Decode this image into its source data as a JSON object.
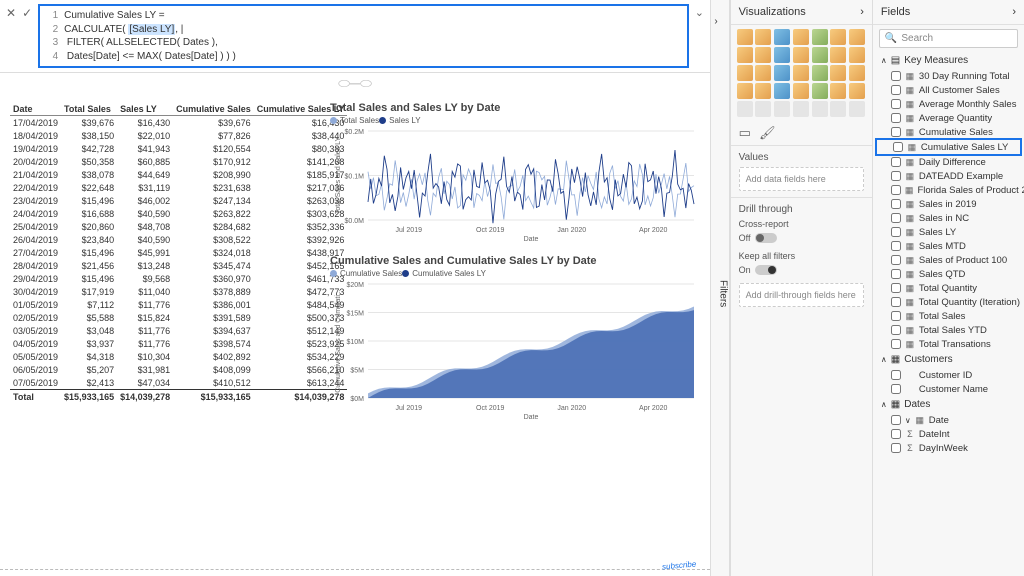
{
  "formula": {
    "lines": [
      {
        "n": "1",
        "pre": "Cumulative Sales LY ="
      },
      {
        "n": "2",
        "pre": "CALCULATE( ",
        "hl": "[Sales LY]",
        "post": ", |"
      },
      {
        "n": "3",
        "pre": "    FILTER( ALLSELECTED( Dates ),"
      },
      {
        "n": "4",
        "pre": "        Dates[Date] <= MAX( Dates[Date] ) ) )"
      }
    ]
  },
  "table": {
    "headers": [
      "Date",
      "Total Sales",
      "Sales LY",
      "Cumulative Sales",
      "Cumulative Sales LY"
    ],
    "rows": [
      [
        "17/04/2019",
        "$39,676",
        "$16,430",
        "$39,676",
        "$16,430"
      ],
      [
        "18/04/2019",
        "$38,150",
        "$22,010",
        "$77,826",
        "$38,440"
      ],
      [
        "19/04/2019",
        "$42,728",
        "$41,943",
        "$120,554",
        "$80,383"
      ],
      [
        "20/04/2019",
        "$50,358",
        "$60,885",
        "$170,912",
        "$141,268"
      ],
      [
        "21/04/2019",
        "$38,078",
        "$44,649",
        "$208,990",
        "$185,917"
      ],
      [
        "22/04/2019",
        "$22,648",
        "$31,119",
        "$231,638",
        "$217,036"
      ],
      [
        "23/04/2019",
        "$15,496",
        "$46,002",
        "$247,134",
        "$263,038"
      ],
      [
        "24/04/2019",
        "$16,688",
        "$40,590",
        "$263,822",
        "$303,628"
      ],
      [
        "25/04/2019",
        "$20,860",
        "$48,708",
        "$284,682",
        "$352,336"
      ],
      [
        "26/04/2019",
        "$23,840",
        "$40,590",
        "$308,522",
        "$392,926"
      ],
      [
        "27/04/2019",
        "$15,496",
        "$45,991",
        "$324,018",
        "$438,917"
      ],
      [
        "28/04/2019",
        "$21,456",
        "$13,248",
        "$345,474",
        "$452,165"
      ],
      [
        "29/04/2019",
        "$15,496",
        "$9,568",
        "$360,970",
        "$461,733"
      ],
      [
        "30/04/2019",
        "$17,919",
        "$11,040",
        "$378,889",
        "$472,773"
      ],
      [
        "01/05/2019",
        "$7,112",
        "$11,776",
        "$386,001",
        "$484,549"
      ],
      [
        "02/05/2019",
        "$5,588",
        "$15,824",
        "$391,589",
        "$500,373"
      ],
      [
        "03/05/2019",
        "$3,048",
        "$11,776",
        "$394,637",
        "$512,149"
      ],
      [
        "04/05/2019",
        "$3,937",
        "$11,776",
        "$398,574",
        "$523,925"
      ],
      [
        "05/05/2019",
        "$4,318",
        "$10,304",
        "$402,892",
        "$534,229"
      ],
      [
        "06/05/2019",
        "$5,207",
        "$31,981",
        "$408,099",
        "$566,210"
      ],
      [
        "07/05/2019",
        "$2,413",
        "$47,034",
        "$410,512",
        "$613,244"
      ]
    ],
    "total": [
      "Total",
      "$15,933,165",
      "$14,039,278",
      "$15,933,165",
      "$14,039,278"
    ]
  },
  "chart1": {
    "title": "Total Sales and Sales LY by Date",
    "legend": [
      {
        "label": "Total Sales",
        "color": "#8faad8"
      },
      {
        "label": "Sales LY",
        "color": "#1f3e8a"
      }
    ],
    "ylabel": "Total Sales and Sales LY",
    "yticks": [
      "$0.2M",
      "$0.1M",
      "$0.0M"
    ],
    "xticks": [
      "Jul 2019",
      "Oct 2019",
      "Jan 2020",
      "Apr 2020"
    ],
    "xlabel": "Date",
    "colors": {
      "s1": "#8faad8",
      "s2": "#1f3e8a",
      "grid": "#e5e5e5",
      "bg": "#ffffff"
    }
  },
  "chart2": {
    "title": "Cumulative Sales and Cumulative Sales LY by Date",
    "legend": [
      {
        "label": "Cumulative Sales",
        "color": "#8faad8"
      },
      {
        "label": "Cumulative Sales LY",
        "color": "#1f3e8a"
      }
    ],
    "ylabel": "Cumulative Sales and Cumulati...",
    "yticks": [
      "$20M",
      "$15M",
      "$10M",
      "$5M",
      "$0M"
    ],
    "xticks": [
      "Jul 2019",
      "Oct 2019",
      "Jan 2020",
      "Apr 2020"
    ],
    "xlabel": "Date",
    "colors": {
      "s1": "#8faad8",
      "s2": "#4a6fb5",
      "grid": "#e5e5e5",
      "bg": "#ffffff"
    }
  },
  "viz": {
    "header": "Visualizations",
    "values_label": "Values",
    "values_placeholder": "Add data fields here",
    "drill_label": "Drill through",
    "cross_label": "Cross-report",
    "cross_state": "Off",
    "keep_label": "Keep all filters",
    "keep_state": "On",
    "drill_placeholder": "Add drill-through fields here"
  },
  "fields": {
    "header": "Fields",
    "search_placeholder": "Search",
    "groups": [
      {
        "name": "Key Measures",
        "icon": "▤",
        "open": true,
        "items": [
          {
            "label": "30 Day Running Total",
            "ico": "▦"
          },
          {
            "label": "All Customer Sales",
            "ico": "▦"
          },
          {
            "label": "Average Monthly Sales",
            "ico": "▦"
          },
          {
            "label": "Average Quantity",
            "ico": "▦"
          },
          {
            "label": "Cumulative Sales",
            "ico": "▦"
          },
          {
            "label": "Cumulative Sales LY",
            "ico": "▦",
            "highlight": true
          },
          {
            "label": "Daily Difference",
            "ico": "▦"
          },
          {
            "label": "DATEADD Example",
            "ico": "▦"
          },
          {
            "label": "Florida Sales of Product 2 ...",
            "ico": "▦"
          },
          {
            "label": "Sales in 2019",
            "ico": "▦"
          },
          {
            "label": "Sales in NC",
            "ico": "▦"
          },
          {
            "label": "Sales LY",
            "ico": "▦"
          },
          {
            "label": "Sales MTD",
            "ico": "▦"
          },
          {
            "label": "Sales of Product 100",
            "ico": "▦"
          },
          {
            "label": "Sales QTD",
            "ico": "▦"
          },
          {
            "label": "Total Quantity",
            "ico": "▦"
          },
          {
            "label": "Total Quantity (Iteration)",
            "ico": "▦"
          },
          {
            "label": "Total Sales",
            "ico": "▦"
          },
          {
            "label": "Total Sales YTD",
            "ico": "▦"
          },
          {
            "label": "Total Transations",
            "ico": "▦"
          }
        ]
      },
      {
        "name": "Customers",
        "icon": "▦",
        "open": true,
        "items": [
          {
            "label": "Customer ID",
            "ico": ""
          },
          {
            "label": "Customer Name",
            "ico": ""
          }
        ]
      },
      {
        "name": "Dates",
        "icon": "▦",
        "open": true,
        "items": [
          {
            "label": "Date",
            "ico": "▦",
            "caret": "∨"
          },
          {
            "label": "DateInt",
            "ico": "Σ"
          },
          {
            "label": "DayInWeek",
            "ico": "Σ"
          }
        ]
      }
    ]
  },
  "filters_label": "Filters"
}
